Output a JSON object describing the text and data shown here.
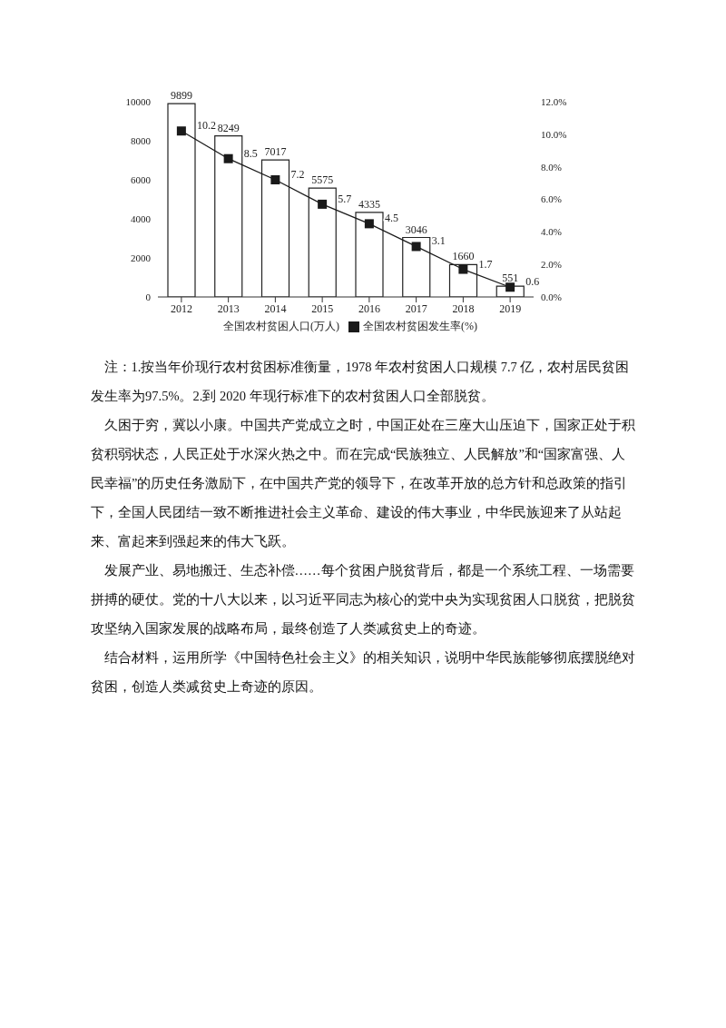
{
  "chart_data": {
    "type": "bar",
    "categories": [
      "2012",
      "2013",
      "2014",
      "2015",
      "2016",
      "2017",
      "2018",
      "2019"
    ],
    "series": [
      {
        "name": "全国农村贫困人口(万人)",
        "color": "#ffffff",
        "values": [
          9899,
          8249,
          7017,
          5575,
          4335,
          3046,
          1660,
          551
        ]
      },
      {
        "name": "全国农村贫困发生率(%)",
        "type": "line",
        "axis": "y2",
        "color": "#1a1a1a",
        "marker": "square",
        "values": [
          10.2,
          8.5,
          7.2,
          5.7,
          4.5,
          3.1,
          1.7,
          0.6
        ]
      }
    ],
    "ylim": [
      0,
      10000
    ],
    "yticks": [
      0,
      2000,
      4000,
      6000,
      8000,
      10000
    ],
    "y2lim": [
      0,
      12
    ],
    "y2ticks": [
      {
        "value": 0,
        "label": "0.0%"
      },
      {
        "value": 2,
        "label": "2.0%"
      },
      {
        "value": 4,
        "label": "4.0%"
      },
      {
        "value": 6,
        "label": "6.0%"
      },
      {
        "value": 8,
        "label": "8.0%"
      },
      {
        "value": 10,
        "label": "10.0%"
      },
      {
        "value": 12,
        "label": "12.0%"
      }
    ],
    "data_labels": true,
    "grid": false,
    "legend": "bottom",
    "line_style": "solid",
    "annotations": [
      "注：1.按当年价现行农村贫困标准衡量，1978 年农村贫困人口规模 7.7 亿，农村居民贫困发生率为97.5%。2.到 2020 年现行标准下的农村贫困人口全部脱贫。",
      "久困于穷，冀以小康。中国共产党成立之时，中国正处在三座大山压迫下，国家正处于积贫积弱状态，人民正处于水深火热之中。而在完成“民族独立、人民解放”和“国家富强、人民幸福”的历史任务激励下，在中国共产党的领导下，在改革开放的总方针和总政策的指引下，全国人民团结一致不断推进社会主义革命、建设的伟大事业，中华民族迎来了从站起来、富起来到强起来的伟大飞跃。",
      "发展产业、易地搬迁、生态补偿……每个贫困户脱贫背后，都是一个系统工程、一场需要拼搏的硬仗。党的十八大以来，以习近平同志为核心的党中央为实现贫困人口脱贫，把脱贫攻坚纳入国家发展的战略布局，最终创造了人类减贫史上的奇迹。",
      "结合材料，运用所学《中国特色社会主义》的相关知识，说明中华民族能够彻底摆脱绝对贫困，创造人类减贫史上奇迹的原因。"
    ]
  }
}
